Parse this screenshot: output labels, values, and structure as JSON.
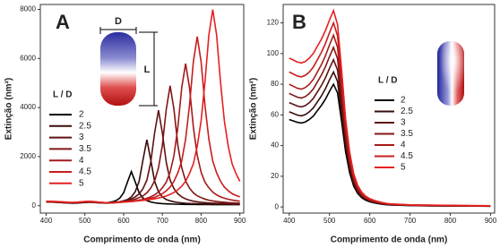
{
  "chart_data": [
    {
      "type": "line",
      "panel_label": "A",
      "x_label": "Comprimento de onda (nm)",
      "y_label": "Extinção (nm²)",
      "legend_title": "L / D",
      "annotations": [
        "D",
        "L"
      ],
      "xlim": [
        385,
        910
      ],
      "xticks": [
        400,
        500,
        600,
        700,
        800,
        900
      ],
      "ylim": [
        -300,
        8200
      ],
      "yticks": [
        0,
        2000,
        4000,
        6000,
        8000
      ],
      "x": [
        400,
        410,
        420,
        430,
        440,
        450,
        460,
        470,
        480,
        490,
        500,
        510,
        520,
        530,
        540,
        550,
        560,
        570,
        580,
        590,
        600,
        610,
        620,
        630,
        640,
        650,
        660,
        670,
        680,
        690,
        700,
        710,
        720,
        730,
        740,
        750,
        760,
        770,
        780,
        790,
        800,
        810,
        820,
        830,
        840,
        850,
        860,
        870,
        880,
        890,
        900
      ],
      "series": [
        {
          "name": "2",
          "color": "#000000",
          "values": [
            155,
            150,
            145,
            135,
            125,
            115,
            106,
            102,
            108,
            120,
            132,
            140,
            145,
            127,
            121,
            119,
            130,
            157,
            206,
            310,
            526,
            970,
            1390,
            970,
            526,
            310,
            206,
            152,
            120,
            99,
            86,
            77,
            70,
            65,
            60,
            57,
            55,
            53,
            51,
            50,
            49,
            48,
            47,
            46,
            46,
            45,
            45,
            45,
            44,
            44,
            44
          ]
        },
        {
          "name": "2.5",
          "color": "#3a0c0c",
          "values": [
            160,
            155,
            150,
            140,
            131,
            122,
            113,
            109,
            116,
            128,
            140,
            147,
            140,
            125,
            115,
            108,
            108,
            117,
            133,
            159,
            199,
            252,
            358,
            570,
            994,
            1869,
            2690,
            1869,
            994,
            570,
            358,
            252,
            199,
            159,
            133,
            112,
            98,
            90,
            84,
            80,
            76,
            72,
            70,
            68,
            66,
            64,
            62,
            60,
            58,
            57,
            55
          ]
        },
        {
          "name": "3",
          "color": "#5e1212",
          "values": [
            165,
            160,
            155,
            146,
            137,
            128,
            120,
            116,
            124,
            136,
            149,
            156,
            149,
            135,
            128,
            120,
            118,
            125,
            145,
            159,
            186,
            225,
            279,
            360,
            483,
            695,
            1041,
            1773,
            2966,
            3890,
            2966,
            1773,
            1041,
            695,
            483,
            360,
            279,
            225,
            186,
            159,
            140,
            126,
            115,
            106,
            99,
            94,
            89,
            85,
            82,
            79,
            77
          ]
        },
        {
          "name": "3.5",
          "color": "#821616",
          "values": [
            170,
            165,
            160,
            151,
            142,
            134,
            126,
            122,
            130,
            142,
            155,
            162,
            157,
            140,
            126,
            115,
            110,
            115,
            125,
            145,
            171,
            200,
            224,
            268,
            331,
            404,
            525,
            719,
            1010,
            1544,
            2465,
            3920,
            4890,
            3920,
            2465,
            1544,
            1010,
            719,
            525,
            404,
            331,
            268,
            224,
            195,
            171,
            155,
            140,
            128,
            118,
            110,
            104
          ]
        },
        {
          "name": "4",
          "color": "#a61a1a",
          "values": [
            175,
            170,
            165,
            156,
            147,
            139,
            131,
            128,
            136,
            148,
            161,
            168,
            163,
            147,
            133,
            123,
            119,
            120,
            125,
            135,
            150,
            161,
            180,
            200,
            230,
            255,
            305,
            362,
            443,
            558,
            730,
            960,
            1363,
            2053,
            3203,
            4813,
            5790,
            4813,
            3203,
            2053,
            1363,
            960,
            730,
            558,
            443,
            362,
            305,
            265,
            230,
            205,
            185
          ]
        },
        {
          "name": "4.5",
          "color": "#c81c1c",
          "values": [
            180,
            175,
            170,
            161,
            152,
            144,
            136,
            133,
            141,
            153,
            166,
            173,
            168,
            152,
            138,
            128,
            124,
            125,
            130,
            140,
            150,
            160,
            172,
            185,
            211,
            240,
            270,
            300,
            340,
            410,
            492,
            609,
            759,
            999,
            1342,
            1821,
            2712,
            4082,
            5863,
            6890,
            5863,
            4082,
            2712,
            1821,
            1342,
            999,
            759,
            609,
            492,
            420,
            360
          ]
        },
        {
          "name": "5",
          "color": "#e62020",
          "values": [
            185,
            180,
            175,
            166,
            157,
            149,
            141,
            138,
            146,
            158,
            171,
            178,
            173,
            157,
            143,
            133,
            129,
            130,
            135,
            145,
            155,
            165,
            175,
            188,
            205,
            218,
            230,
            255,
            280,
            311,
            355,
            398,
            460,
            541,
            652,
            795,
            994,
            1312,
            1710,
            2425,
            3459,
            5049,
            6957,
            7990,
            6957,
            5049,
            3459,
            2425,
            1710,
            1312,
            994
          ]
        }
      ]
    },
    {
      "type": "line",
      "panel_label": "B",
      "x_label": "Comprimento de onda (nm)",
      "y_label": "Extinção (nm²)",
      "legend_title": "L / D",
      "xlim": [
        385,
        910
      ],
      "xticks": [
        400,
        500,
        600,
        700,
        800,
        900
      ],
      "ylim": [
        -4,
        132
      ],
      "yticks": [
        0,
        20,
        40,
        60,
        80,
        100,
        120
      ],
      "x": [
        400,
        410,
        420,
        430,
        440,
        450,
        460,
        470,
        480,
        490,
        500,
        510,
        520,
        530,
        540,
        550,
        560,
        570,
        580,
        590,
        600,
        610,
        620,
        630,
        640,
        650,
        700,
        750,
        800,
        850,
        900
      ],
      "series": [
        {
          "name": "2",
          "color": "#000000",
          "values": [
            57,
            56.1,
            55.2,
            54.7,
            55.4,
            57,
            59.3,
            62.8,
            66.2,
            70.3,
            75.4,
            80,
            74.4,
            56,
            36,
            22.4,
            13.6,
            8.8,
            6,
            4.4,
            3.4,
            2.7,
            2.2,
            1.8,
            1.5,
            1.3,
            0.9,
            0.7,
            0.6,
            0.6,
            0.5
          ]
        },
        {
          "name": "2.5",
          "color": "#3a0c0c",
          "values": [
            62,
            61,
            59.9,
            59.4,
            60.2,
            62,
            64.6,
            68.5,
            72.4,
            77.1,
            82.8,
            88,
            81.8,
            61.6,
            39.6,
            24.6,
            15,
            9.7,
            6.6,
            4.8,
            3.7,
            3,
            2.5,
            2,
            1.7,
            1.4,
            1,
            0.8,
            0.7,
            0.6,
            0.5
          ]
        },
        {
          "name": "3",
          "color": "#5e1212",
          "values": [
            68,
            66.9,
            65.8,
            65.2,
            66,
            68,
            70.8,
            75,
            79.2,
            84.2,
            90.4,
            96,
            89.3,
            67.2,
            43.2,
            26.9,
            16.3,
            10.6,
            7.2,
            5.3,
            4,
            3.3,
            2.7,
            2.2,
            1.8,
            1.5,
            1.1,
            0.9,
            0.8,
            0.7,
            0.6
          ]
        },
        {
          "name": "3.5",
          "color": "#821616",
          "values": [
            74,
            72.8,
            71.6,
            71,
            71.9,
            74,
            77,
            81.5,
            86,
            91.4,
            98,
            104,
            96.7,
            72.8,
            46.8,
            29.1,
            17.7,
            11.4,
            7.8,
            5.7,
            4.4,
            3.5,
            2.9,
            2.4,
            2,
            1.7,
            1.1,
            0.9,
            0.8,
            0.7,
            0.6
          ]
        },
        {
          "name": "4",
          "color": "#a61a1a",
          "values": [
            80,
            78.7,
            77.4,
            76.8,
            77.8,
            80,
            83.2,
            88,
            92.8,
            98.6,
            105.6,
            112,
            104.2,
            78.4,
            50.4,
            31.4,
            19,
            12.3,
            8.4,
            6.2,
            4.7,
            3.8,
            3.1,
            2.6,
            2.1,
            1.8,
            1.2,
            1,
            0.9,
            0.8,
            0.7
          ]
        },
        {
          "name": "4.5",
          "color": "#c81c1c",
          "values": [
            88,
            86.7,
            85.4,
            84.8,
            85.8,
            88,
            91.2,
            96,
            100.8,
            106.6,
            113.6,
            120,
            111.6,
            84,
            54,
            33.6,
            20.4,
            13.2,
            9,
            6.6,
            5,
            4.1,
            3.4,
            2.8,
            2.3,
            1.9,
            1.3,
            1.1,
            1,
            0.8,
            0.7
          ]
        },
        {
          "name": "5",
          "color": "#e62020",
          "values": [
            97,
            95.8,
            94.5,
            93.9,
            94.8,
            97,
            100.1,
            104.8,
            109.4,
            115,
            121.8,
            128,
            119,
            89.6,
            57.6,
            35.8,
            21.8,
            14.1,
            9.6,
            7,
            5.4,
            4.4,
            3.6,
            2.9,
            2.4,
            2,
            1.4,
            1.2,
            1,
            0.9,
            0.8
          ]
        }
      ]
    }
  ]
}
